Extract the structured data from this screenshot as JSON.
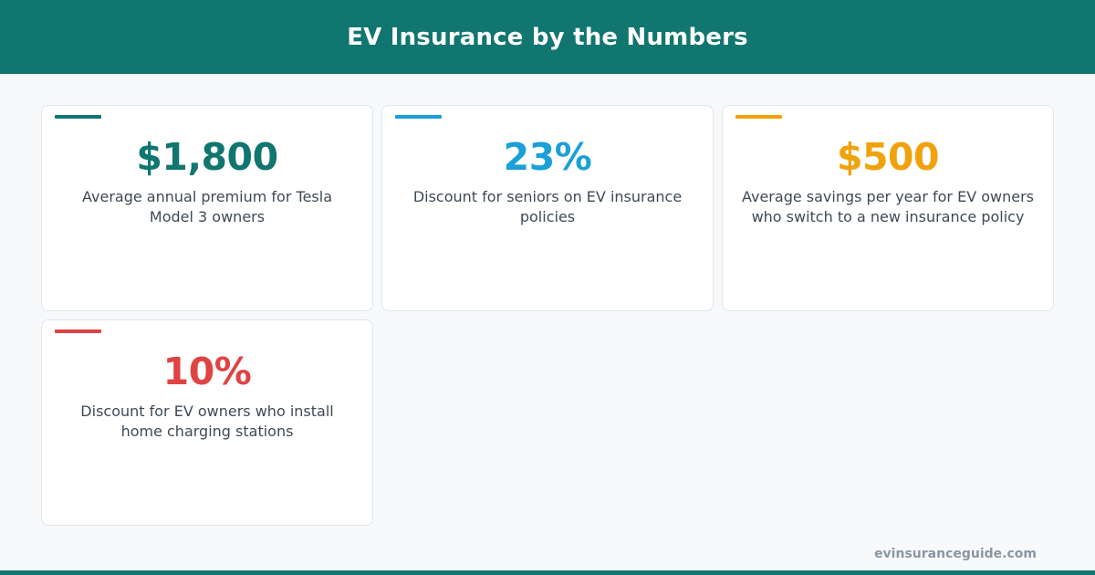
{
  "header": {
    "title": "EV Insurance by the Numbers",
    "background_color": "#10766f"
  },
  "stats": [
    {
      "value": "$1,800",
      "description": "Average annual premium for Tesla Model 3 owners",
      "color": "#10766f"
    },
    {
      "value": "23%",
      "description": "Discount for seniors on EV insurance policies",
      "color": "#1ba0d8"
    },
    {
      "value": "$500",
      "description": "Average savings per year for EV owners who switch to a new insurance policy",
      "color": "#f0a20c"
    },
    {
      "value": "10%",
      "description": "Discount for EV owners who install home charging stations",
      "color": "#e04343"
    }
  ],
  "footer": {
    "url": "evinsuranceguide.com"
  }
}
